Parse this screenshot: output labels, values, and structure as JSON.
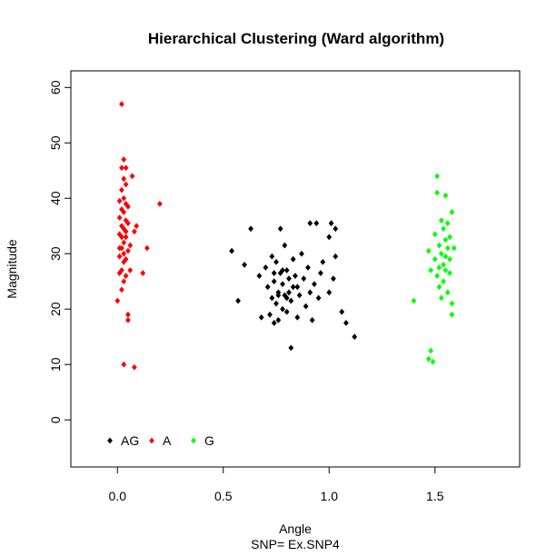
{
  "chart_data": {
    "type": "scatter",
    "title": "Hierarchical Clustering (Ward algorithm)",
    "xlabel": "Angle",
    "subtitle": "SNP=  Ex.SNP4",
    "ylabel": "Magnitude",
    "xlim": [
      -0.22,
      1.9
    ],
    "ylim": [
      -8.5,
      63
    ],
    "x_ticks": [
      0.0,
      0.5,
      1.0,
      1.5
    ],
    "x_tick_labels": [
      "0.0",
      "0.5",
      "1.0",
      "1.5"
    ],
    "y_ticks": [
      0,
      10,
      20,
      30,
      40,
      50,
      60
    ],
    "y_tick_labels": [
      "0",
      "10",
      "20",
      "30",
      "40",
      "50",
      "60"
    ],
    "grid": false,
    "legend_position": "bottom-left",
    "series": [
      {
        "name": "AG",
        "color": "#000000",
        "points": [
          [
            0.54,
            30.5
          ],
          [
            0.57,
            21.5
          ],
          [
            0.6,
            28.0
          ],
          [
            0.63,
            34.5
          ],
          [
            0.67,
            26.0
          ],
          [
            0.68,
            18.5
          ],
          [
            0.7,
            27.5
          ],
          [
            0.71,
            24.0
          ],
          [
            0.72,
            19.0
          ],
          [
            0.73,
            22.0
          ],
          [
            0.73,
            29.5
          ],
          [
            0.74,
            17.5
          ],
          [
            0.74,
            25.0
          ],
          [
            0.75,
            21.0
          ],
          [
            0.75,
            28.5
          ],
          [
            0.76,
            23.0
          ],
          [
            0.76,
            18.0
          ],
          [
            0.77,
            34.5
          ],
          [
            0.77,
            26.5
          ],
          [
            0.78,
            24.5
          ],
          [
            0.78,
            20.0
          ],
          [
            0.79,
            31.5
          ],
          [
            0.79,
            22.5
          ],
          [
            0.8,
            27.0
          ],
          [
            0.8,
            19.5
          ],
          [
            0.81,
            25.5
          ],
          [
            0.81,
            23.0
          ],
          [
            0.82,
            13.0
          ],
          [
            0.82,
            21.5
          ],
          [
            0.83,
            29.0
          ],
          [
            0.84,
            26.0
          ],
          [
            0.85,
            24.0
          ],
          [
            0.85,
            18.5
          ],
          [
            0.86,
            22.5
          ],
          [
            0.87,
            30.0
          ],
          [
            0.88,
            25.5
          ],
          [
            0.89,
            20.5
          ],
          [
            0.9,
            27.5
          ],
          [
            0.91,
            35.5
          ],
          [
            0.91,
            23.0
          ],
          [
            0.92,
            18.0
          ],
          [
            0.93,
            24.5
          ],
          [
            0.94,
            35.5
          ],
          [
            0.95,
            22.0
          ],
          [
            0.96,
            26.5
          ],
          [
            0.97,
            28.5
          ],
          [
            1.0,
            33.0
          ],
          [
            1.0,
            23.0
          ],
          [
            1.01,
            35.5
          ],
          [
            1.02,
            25.5
          ],
          [
            1.03,
            34.5
          ],
          [
            1.03,
            29.5
          ],
          [
            1.06,
            19.5
          ],
          [
            1.08,
            17.5
          ],
          [
            1.12,
            15.0
          ],
          [
            0.74,
            26.5
          ],
          [
            0.76,
            22.5
          ],
          [
            0.78,
            27.0
          ],
          [
            0.8,
            22.0
          ],
          [
            0.83,
            24.0
          ]
        ]
      },
      {
        "name": "A",
        "color": "#ff0000",
        "points": [
          [
            0.0,
            21.5
          ],
          [
            0.01,
            26.5
          ],
          [
            0.01,
            29.5
          ],
          [
            0.01,
            33.5
          ],
          [
            0.01,
            36.5
          ],
          [
            0.01,
            39.5
          ],
          [
            0.02,
            23.5
          ],
          [
            0.02,
            27.0
          ],
          [
            0.02,
            31.0
          ],
          [
            0.02,
            35.0
          ],
          [
            0.02,
            38.0
          ],
          [
            0.02,
            41.5
          ],
          [
            0.02,
            57.0
          ],
          [
            0.02,
            45.5
          ],
          [
            0.03,
            25.0
          ],
          [
            0.03,
            28.5
          ],
          [
            0.03,
            32.0
          ],
          [
            0.03,
            34.5
          ],
          [
            0.03,
            37.5
          ],
          [
            0.03,
            40.0
          ],
          [
            0.03,
            43.5
          ],
          [
            0.03,
            47.0
          ],
          [
            0.03,
            10.0
          ],
          [
            0.04,
            26.0
          ],
          [
            0.04,
            29.0
          ],
          [
            0.04,
            33.0
          ],
          [
            0.04,
            36.0
          ],
          [
            0.04,
            39.0
          ],
          [
            0.04,
            42.5
          ],
          [
            0.04,
            45.5
          ],
          [
            0.05,
            19.0
          ],
          [
            0.05,
            18.0
          ],
          [
            0.05,
            30.5
          ],
          [
            0.05,
            35.5
          ],
          [
            0.05,
            38.5
          ],
          [
            0.06,
            27.0
          ],
          [
            0.06,
            31.5
          ],
          [
            0.07,
            44.0
          ],
          [
            0.08,
            9.5
          ],
          [
            0.08,
            34.0
          ],
          [
            0.09,
            35.0
          ],
          [
            0.12,
            26.5
          ],
          [
            0.14,
            31.0
          ],
          [
            0.2,
            39.0
          ],
          [
            0.01,
            31.0
          ],
          [
            0.02,
            33.0
          ],
          [
            0.03,
            30.0
          ],
          [
            0.04,
            34.0
          ]
        ]
      },
      {
        "name": "G",
        "color": "#00ff00",
        "points": [
          [
            1.4,
            21.5
          ],
          [
            1.47,
            11.0
          ],
          [
            1.47,
            30.5
          ],
          [
            1.48,
            12.5
          ],
          [
            1.48,
            27.0
          ],
          [
            1.49,
            10.5
          ],
          [
            1.5,
            33.5
          ],
          [
            1.5,
            29.0
          ],
          [
            1.51,
            26.0
          ],
          [
            1.51,
            44.0
          ],
          [
            1.51,
            41.0
          ],
          [
            1.52,
            31.5
          ],
          [
            1.52,
            27.5
          ],
          [
            1.52,
            24.0
          ],
          [
            1.53,
            36.0
          ],
          [
            1.53,
            30.0
          ],
          [
            1.53,
            22.0
          ],
          [
            1.54,
            34.5
          ],
          [
            1.54,
            28.0
          ],
          [
            1.54,
            25.0
          ],
          [
            1.55,
            40.5
          ],
          [
            1.55,
            32.5
          ],
          [
            1.55,
            29.5
          ],
          [
            1.55,
            27.0
          ],
          [
            1.56,
            35.5
          ],
          [
            1.56,
            31.0
          ],
          [
            1.56,
            23.0
          ],
          [
            1.57,
            33.0
          ],
          [
            1.57,
            26.5
          ],
          [
            1.57,
            29.0
          ],
          [
            1.58,
            19.0
          ],
          [
            1.58,
            21.0
          ],
          [
            1.59,
            31.0
          ],
          [
            1.58,
            37.5
          ]
        ]
      }
    ]
  }
}
